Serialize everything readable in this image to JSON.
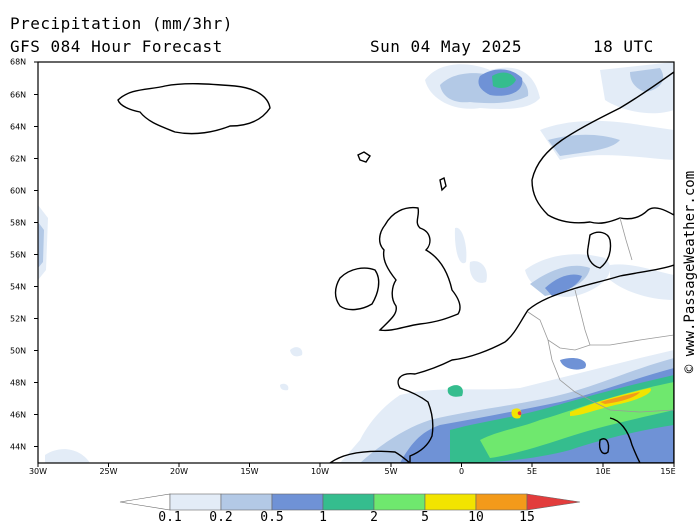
{
  "header": {
    "title": "Precipitation (mm/3hr)",
    "subtitle": "GFS 084 Hour Forecast",
    "date": "Sun 04 May 2025",
    "time": "18 UTC"
  },
  "credit": "© www.PassageWeather.com",
  "map": {
    "lat_labels": [
      "68N",
      "66N",
      "64N",
      "62N",
      "60N",
      "58N",
      "56N",
      "54N",
      "52N",
      "50N",
      "48N",
      "46N",
      "44N"
    ],
    "lon_labels": [
      "30W",
      "25W",
      "20W",
      "15W",
      "10W",
      "5W",
      "0",
      "5E",
      "10E",
      "15E"
    ],
    "colors": {
      "ocean": "#ffffff",
      "coast": "#000000",
      "border": "#9a9a9a"
    }
  },
  "legend": {
    "values": [
      "0.1",
      "0.2",
      "0.5",
      "1",
      "2",
      "5",
      "10",
      "15"
    ],
    "colors": [
      "#ffffff",
      "#e3ecf7",
      "#b3c9e6",
      "#6f92d6",
      "#35bd8e",
      "#6fe86e",
      "#f2e400",
      "#f39a1a",
      "#e23c3c"
    ]
  }
}
